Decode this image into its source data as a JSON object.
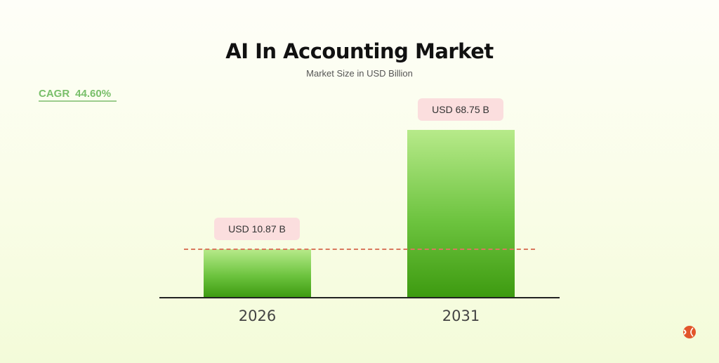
{
  "chart_data": {
    "type": "bar",
    "title": "AI In Accounting Market",
    "subtitle": "Market Size in USD Billion",
    "categories": [
      "2026",
      "2031"
    ],
    "values": [
      10.87,
      68.75
    ],
    "data_labels": [
      "USD 10.87 B",
      "USD 68.75 B"
    ],
    "annotation": {
      "label": "CAGR",
      "value": "44.60%"
    },
    "reference_line": {
      "value": 10.87,
      "style": "dashed",
      "color": "#d9785e"
    },
    "bar_color": "#4ca81c",
    "grid": false
  },
  "logo": {
    "icon": "brand-logo-icon",
    "color": "#e2552b"
  }
}
